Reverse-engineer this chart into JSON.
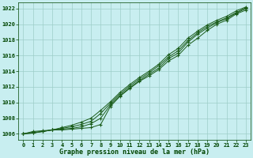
{
  "title": "Graphe pression niveau de la mer (hPa)",
  "bg_color": "#c8eef0",
  "grid_color": "#9dcec8",
  "line_color": "#1a5c1a",
  "xlim": [
    -0.5,
    23.5
  ],
  "ylim": [
    1005.2,
    1022.8
  ],
  "yticks": [
    1006,
    1008,
    1010,
    1012,
    1014,
    1016,
    1018,
    1020,
    1022
  ],
  "xticks": [
    0,
    1,
    2,
    3,
    4,
    5,
    6,
    7,
    8,
    9,
    10,
    11,
    12,
    13,
    14,
    15,
    16,
    17,
    18,
    19,
    20,
    21,
    22,
    23
  ],
  "lines": [
    [
      1006.0,
      1006.3,
      1006.4,
      1006.5,
      1006.5,
      1006.6,
      1006.7,
      1006.8,
      1007.2,
      1009.5,
      1010.8,
      1011.8,
      1012.7,
      1013.4,
      1014.2,
      1015.3,
      1016.0,
      1017.3,
      1018.2,
      1019.2,
      1020.0,
      1020.5,
      1021.3,
      1021.8
    ],
    [
      1006.0,
      1006.2,
      1006.3,
      1006.5,
      1006.6,
      1006.7,
      1006.9,
      1007.3,
      1008.0,
      1009.7,
      1010.9,
      1011.9,
      1012.8,
      1013.6,
      1014.4,
      1015.6,
      1016.3,
      1017.7,
      1018.7,
      1019.5,
      1020.2,
      1020.7,
      1021.4,
      1022.0
    ],
    [
      1006.0,
      1006.1,
      1006.3,
      1006.5,
      1006.7,
      1006.9,
      1007.2,
      1007.6,
      1008.6,
      1009.9,
      1011.1,
      1012.1,
      1013.0,
      1013.8,
      1014.7,
      1015.8,
      1016.6,
      1017.9,
      1018.9,
      1019.7,
      1020.3,
      1020.8,
      1021.5,
      1022.1
    ],
    [
      1006.0,
      1006.1,
      1006.3,
      1006.5,
      1006.8,
      1007.1,
      1007.5,
      1008.0,
      1009.0,
      1010.1,
      1011.3,
      1012.3,
      1013.2,
      1014.0,
      1014.9,
      1016.1,
      1016.9,
      1018.2,
      1019.1,
      1019.9,
      1020.5,
      1021.0,
      1021.7,
      1022.2
    ]
  ]
}
